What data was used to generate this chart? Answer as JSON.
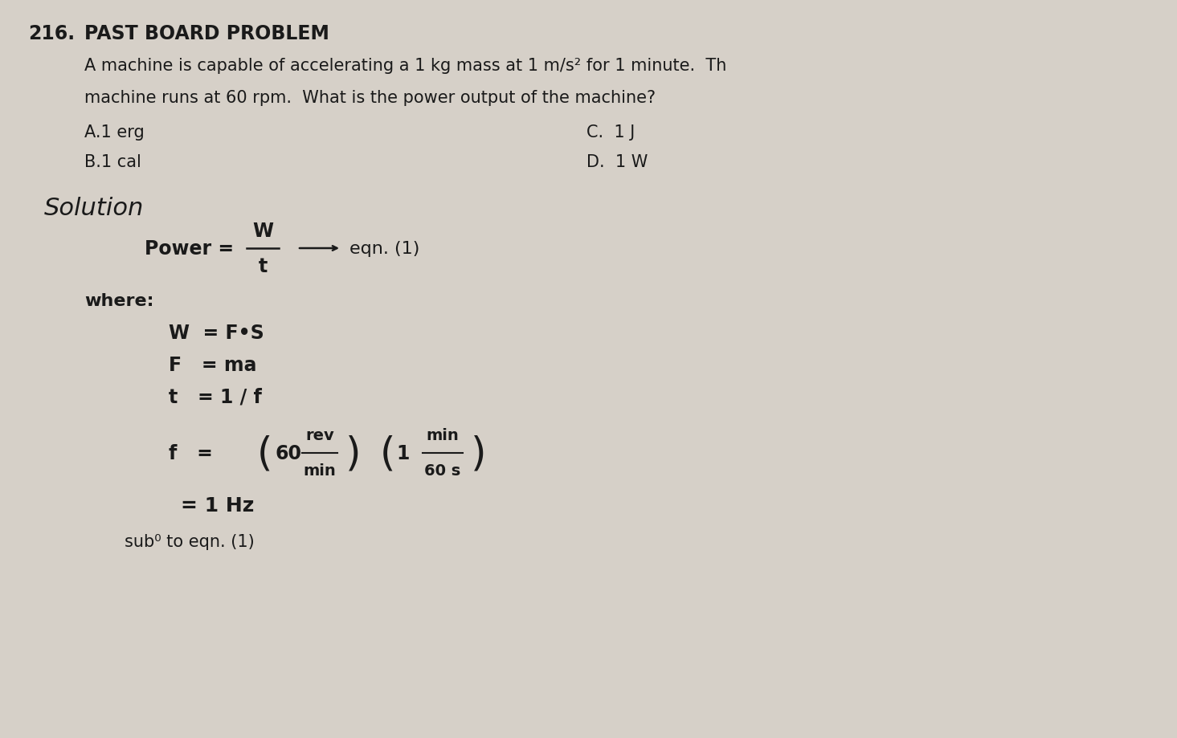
{
  "bg_color": "#d6d0c8",
  "text_color": "#1a1a1a",
  "number": "216.",
  "header": "PAST BOARD PROBLEM",
  "problem_line1": "A machine is capable of accelerating a 1 kg mass at 1 m/s² for 1 minute.  Th",
  "problem_line2": "machine runs at 60 rpm.  What is the power output of the machine?",
  "choice_A": "A.1 erg",
  "choice_B": "B.1 cal",
  "choice_C": "C.  1 J",
  "choice_D": "D.  1 W",
  "solution_label": "Solution",
  "power_eq": "Power = → eqn. (1)",
  "where_label": "where:",
  "eq_W": "W  = F•S",
  "eq_F": "F   = ma",
  "eq_t": "t   = 1 / f",
  "eq_f_label": "f   =",
  "eq_f_term1_num": "rev",
  "eq_f_term1_den": "min",
  "eq_f_term1_coeff": "60",
  "eq_f_term2_num": "min",
  "eq_f_term2_den": "60 s",
  "eq_f_term2_coeff": "1",
  "eq_f_result": "= 1 Hz",
  "eq_sub_label": "sub⁰ to eqn. (1)"
}
